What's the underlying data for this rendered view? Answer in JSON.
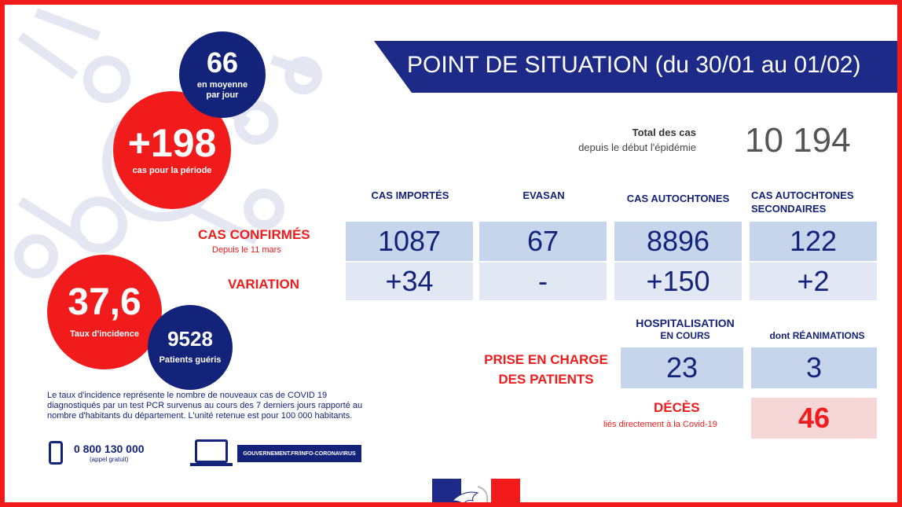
{
  "banner": {
    "title": "POINT DE SITUATION (du 30/01 au 01/02)"
  },
  "total": {
    "label_bold": "Total des cas",
    "label": "depuis le début  l'épidémie",
    "value": "10 194"
  },
  "bubbles": {
    "avg": {
      "value": "66",
      "label_1": "en moyenne",
      "label_2": "par jour"
    },
    "period": {
      "value": "+198",
      "label": "cas pour la période"
    },
    "incidence": {
      "value": "37,6",
      "label": "Taux d'incidence"
    },
    "cured": {
      "value": "9528",
      "label": "Patients guéris"
    }
  },
  "table": {
    "columns": [
      "CAS IMPORTÉS",
      "EVASAN",
      "CAS AUTOCHTONES",
      "CAS AUTOCHTONES SECONDAIRES"
    ],
    "confirmed": {
      "label": "CAS CONFIRMÉS",
      "sub": "Depuis le 11 mars",
      "values": [
        "1087",
        "67",
        "8896",
        "122"
      ]
    },
    "variation": {
      "label": "VARIATION",
      "values": [
        "+34",
        "-",
        "+150",
        "+2"
      ]
    }
  },
  "care": {
    "label_1": "PRISE EN CHARGE",
    "label_2": "DES PATIENTS",
    "hosp_label_1": "HOSPITALISATION",
    "hosp_label_2": "EN COURS",
    "hosp_value": "23",
    "rea_label": "dont RÉANIMATIONS",
    "rea_value": "3"
  },
  "deaths": {
    "label": "DÉCÈS",
    "sub": "liés directement à la Covid-19",
    "value": "46"
  },
  "footer": {
    "description": "Le taux d'incidence représente le nombre de nouveaux cas de COVID 19 diagnostiqués par un test PCR survenus au cours des 7 derniers jours rapporté au nombre d'habitants du département. L'unité retenue est pour 100 000 habitants.",
    "phone": "0 800 130 000",
    "phone_note": "(appel gratuit)",
    "website": "GOUVERNEMENT.FR/INFO-CORONAVIRUS"
  },
  "icons": [
    "phone-icon",
    "laptop-icon",
    "marianne-logo"
  ],
  "colors": {
    "red": "#f21b1b",
    "navy": "#13237a",
    "banner": "#1e2a87",
    "cell": "#c6d5ec",
    "cell_light": "#e1e8f4",
    "death_cell": "#f6d6d6"
  }
}
